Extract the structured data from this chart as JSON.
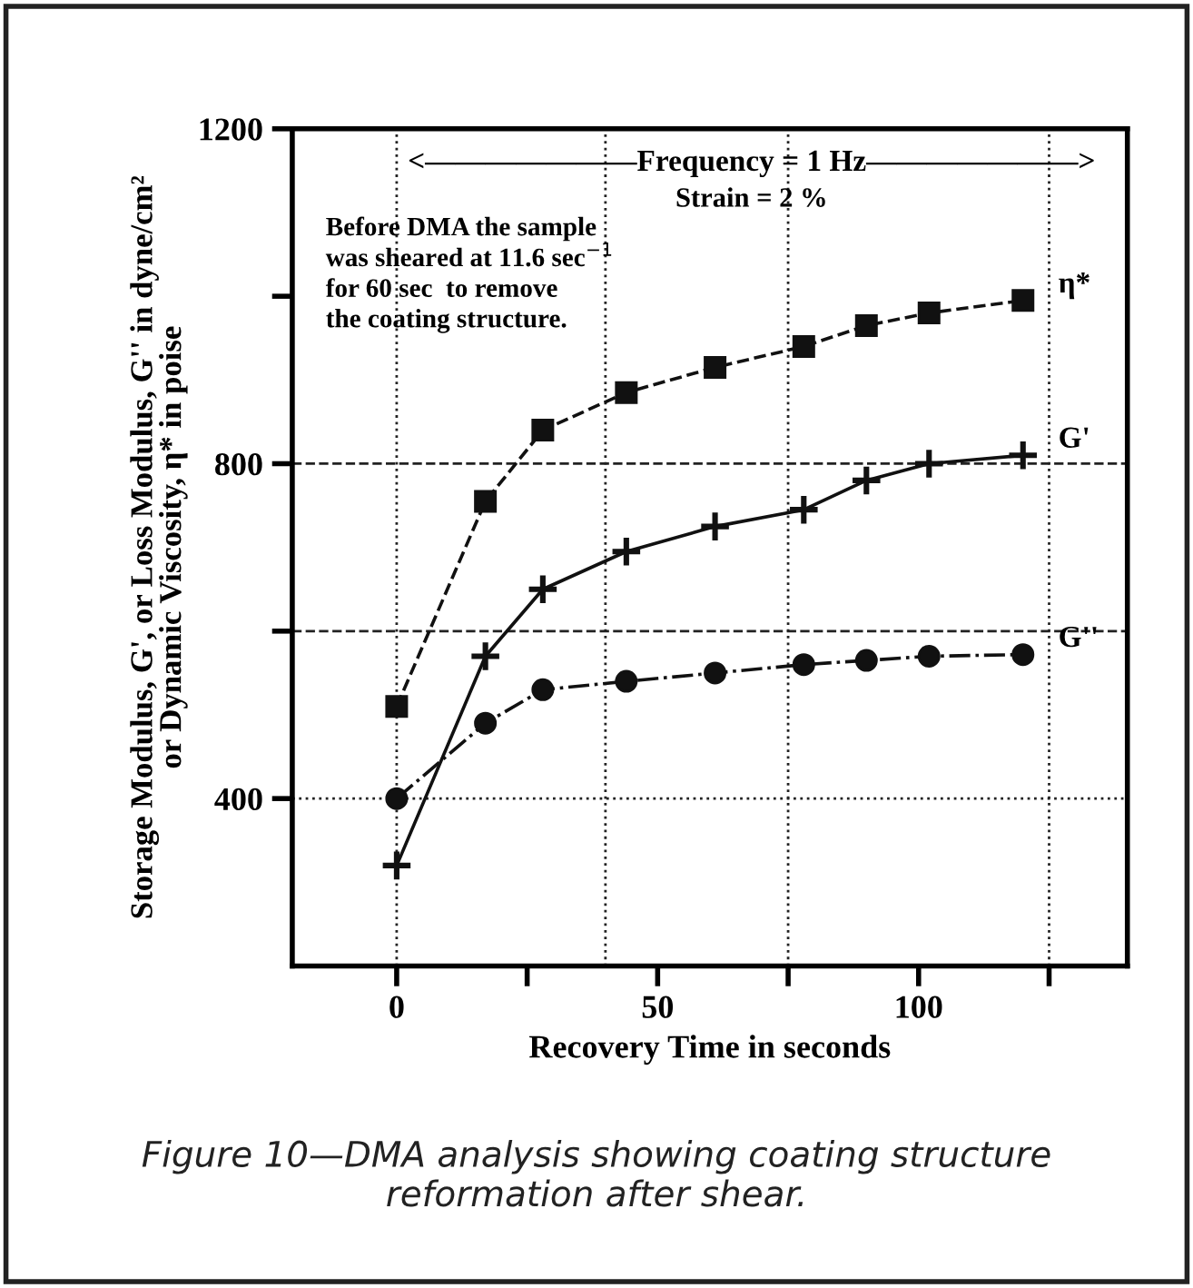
{
  "chart_data": {
    "type": "line",
    "xlabel": "Recovery Time in seconds",
    "ylabel": "Storage Modulus, G', or Loss Modulus, G'' in dyne/cm²\nor Dynamic Viscosity, η* in poise",
    "x": [
      0,
      17,
      28,
      44,
      61,
      78,
      90,
      102,
      120
    ],
    "series": [
      {
        "name": "η*",
        "color": "#111111",
        "marker": "square",
        "line_style": "dashed",
        "values": [
          510,
          755,
          840,
          885,
          915,
          940,
          965,
          980,
          995
        ]
      },
      {
        "name": "G'",
        "color": "#111111",
        "marker": "cross",
        "line_style": "solid",
        "values": [
          320,
          570,
          650,
          695,
          725,
          745,
          780,
          800,
          810
        ]
      },
      {
        "name": "G''",
        "color": "#111111",
        "marker": "circle",
        "line_style": "dashdot",
        "values": [
          400,
          490,
          530,
          540,
          550,
          560,
          565,
          570,
          572
        ]
      }
    ],
    "xlim": [
      -20,
      140
    ],
    "ylim": [
      200,
      1200
    ],
    "xticks": [
      0,
      {
        "value": 25,
        "label": null
      },
      50,
      {
        "value": 75,
        "label": null
      },
      100,
      {
        "value": 125,
        "label": null
      }
    ],
    "yticks": [
      {
        "value": 400,
        "label": "400"
      },
      {
        "value": 600,
        "label": null
      },
      {
        "value": 800,
        "label": "800"
      },
      {
        "value": 1000,
        "label": null
      },
      {
        "value": 1200,
        "label": "1200"
      }
    ],
    "ref_lines": [
      {
        "axis": "y",
        "value": 400,
        "line_style": "dotted"
      },
      {
        "axis": "y",
        "value": 600,
        "line_style": "dashed"
      },
      {
        "axis": "y",
        "value": 800,
        "line_style": "dashed"
      },
      {
        "axis": "x",
        "value": 0,
        "line_style": "dotted"
      },
      {
        "axis": "x",
        "value": 40,
        "line_style": "dotted"
      },
      {
        "axis": "x",
        "value": 75,
        "line_style": "dotted"
      },
      {
        "axis": "x",
        "value": 125,
        "line_style": "dotted"
      }
    ],
    "annotations": [
      "<———————Frequency = 1 Hz———————>",
      "Strain = 2 %",
      "Before DMA the sample\nwas sheared at 11.6 sec$^{−1}$\nfor 60 sec  to remove\nthe coating structure.",
      "Figure 10—DMA analysis showing coating structure\nreformation after shear."
    ]
  }
}
